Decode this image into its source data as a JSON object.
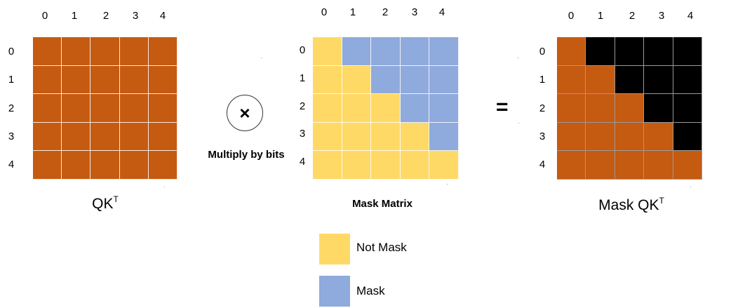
{
  "colors": {
    "orange": "#c55a11",
    "yellow": "#ffd966",
    "blue": "#8faadc",
    "black": "#000000"
  },
  "index_labels": [
    "0",
    "1",
    "2",
    "3",
    "4"
  ],
  "left_matrix": {
    "caption_main": "QK",
    "caption_sup": "T"
  },
  "operator": {
    "symbol": "×",
    "label": "Multiply by bits"
  },
  "mask_matrix": {
    "caption": "Mask Matrix",
    "cells": [
      [
        "Y",
        "B",
        "B",
        "B",
        "B"
      ],
      [
        "Y",
        "Y",
        "B",
        "B",
        "B"
      ],
      [
        "Y",
        "Y",
        "Y",
        "B",
        "B"
      ],
      [
        "Y",
        "Y",
        "Y",
        "Y",
        "B"
      ],
      [
        "Y",
        "Y",
        "Y",
        "Y",
        "Y"
      ]
    ]
  },
  "equals": "=",
  "result_matrix": {
    "caption_main": "Mask QK",
    "caption_sup": "T",
    "cells": [
      [
        "O",
        "K",
        "K",
        "K",
        "K"
      ],
      [
        "O",
        "O",
        "K",
        "K",
        "K"
      ],
      [
        "O",
        "O",
        "O",
        "K",
        "K"
      ],
      [
        "O",
        "O",
        "O",
        "O",
        "K"
      ],
      [
        "O",
        "O",
        "O",
        "O",
        "O"
      ]
    ]
  },
  "legend": {
    "not_mask": "Not Mask",
    "mask": "Mask"
  }
}
